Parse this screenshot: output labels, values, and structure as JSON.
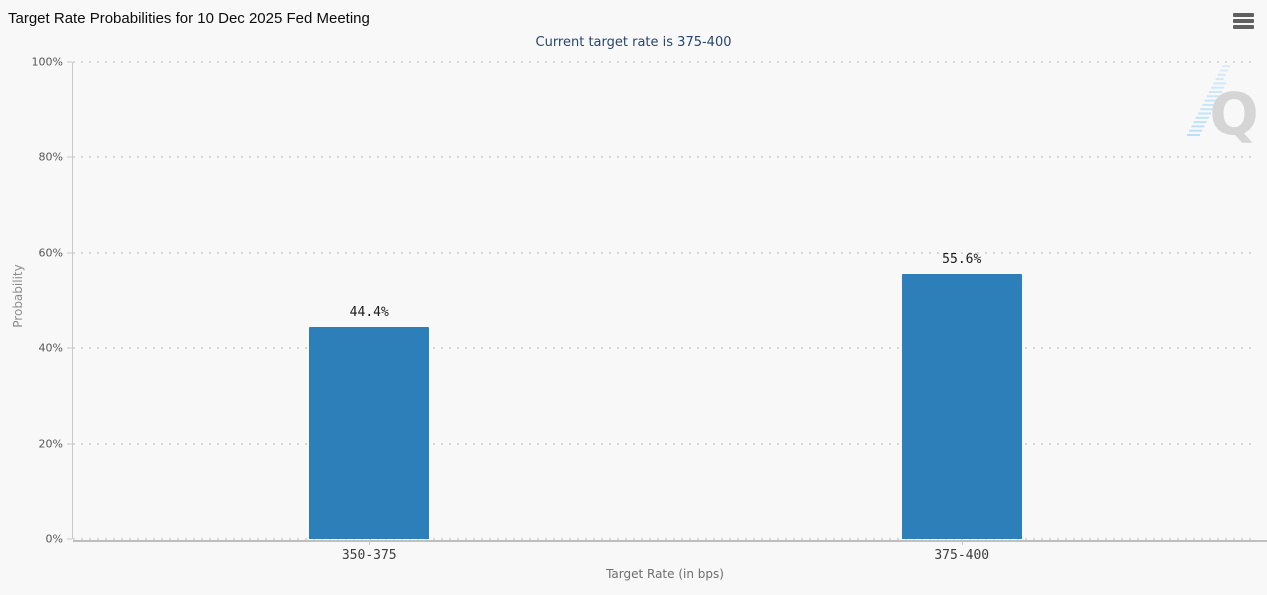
{
  "header": {
    "title": "Target Rate Probabilities for 10 Dec 2025 Fed Meeting"
  },
  "icons": {
    "menu": "hamburger-icon",
    "watermark": "quikstrike-q-logo"
  },
  "watermark": {
    "text": "Q"
  },
  "chart_data": {
    "type": "bar",
    "title": "Target Rate Probabilities for 10 Dec 2025 Fed Meeting",
    "subtitle": "Current target rate is 375-400",
    "categories": [
      "350-375",
      "375-400"
    ],
    "values": [
      44.4,
      55.6
    ],
    "data_labels": [
      "44.4%",
      "55.6%"
    ],
    "xlabel": "Target Rate (in bps)",
    "ylabel": "Probability",
    "ylim": [
      0,
      100
    ],
    "ytick_interval": 20,
    "ytick_labels": [
      "0%",
      "20%",
      "40%",
      "60%",
      "80%",
      "100%"
    ],
    "grid": "horizontal-dotted",
    "legend": "none",
    "bar_color": "#2c7fb8"
  },
  "colors": {
    "background": "#f8f8f8",
    "bar": "#2c7fb8",
    "subtitle_text": "#28456e",
    "grid_dot": "#d9d9d9",
    "axis_line": "#bfbfbf",
    "menu_icon": "#606060",
    "watermark_q": "#d5d5d5",
    "watermark_stripe": "#b9e0f7"
  }
}
